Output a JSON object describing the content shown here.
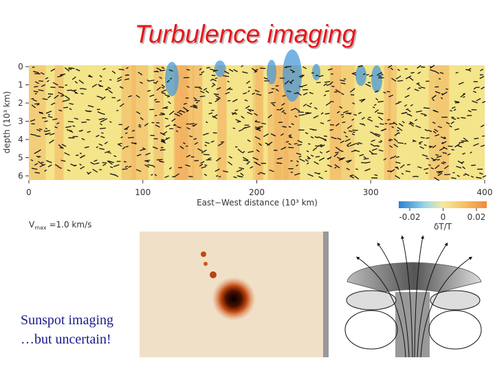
{
  "title": "Turbulence imaging",
  "turbulence_map": {
    "xlabel": "East−West distance (10³ km)",
    "ylabel": "depth (10³ km)",
    "xticks": [
      0,
      100,
      200,
      300,
      400
    ],
    "yticks": [
      0,
      1,
      2,
      3,
      4,
      5,
      6
    ],
    "colorbar": {
      "ticks": [
        -0.02,
        0,
        0.02
      ],
      "label": "δT/T"
    },
    "vmax": {
      "symbol": "V",
      "subscript": "max",
      "text": " =1.0 km/s"
    }
  },
  "caption": {
    "line1": "Sunspot imaging",
    "line2": "…but uncertain!"
  }
}
